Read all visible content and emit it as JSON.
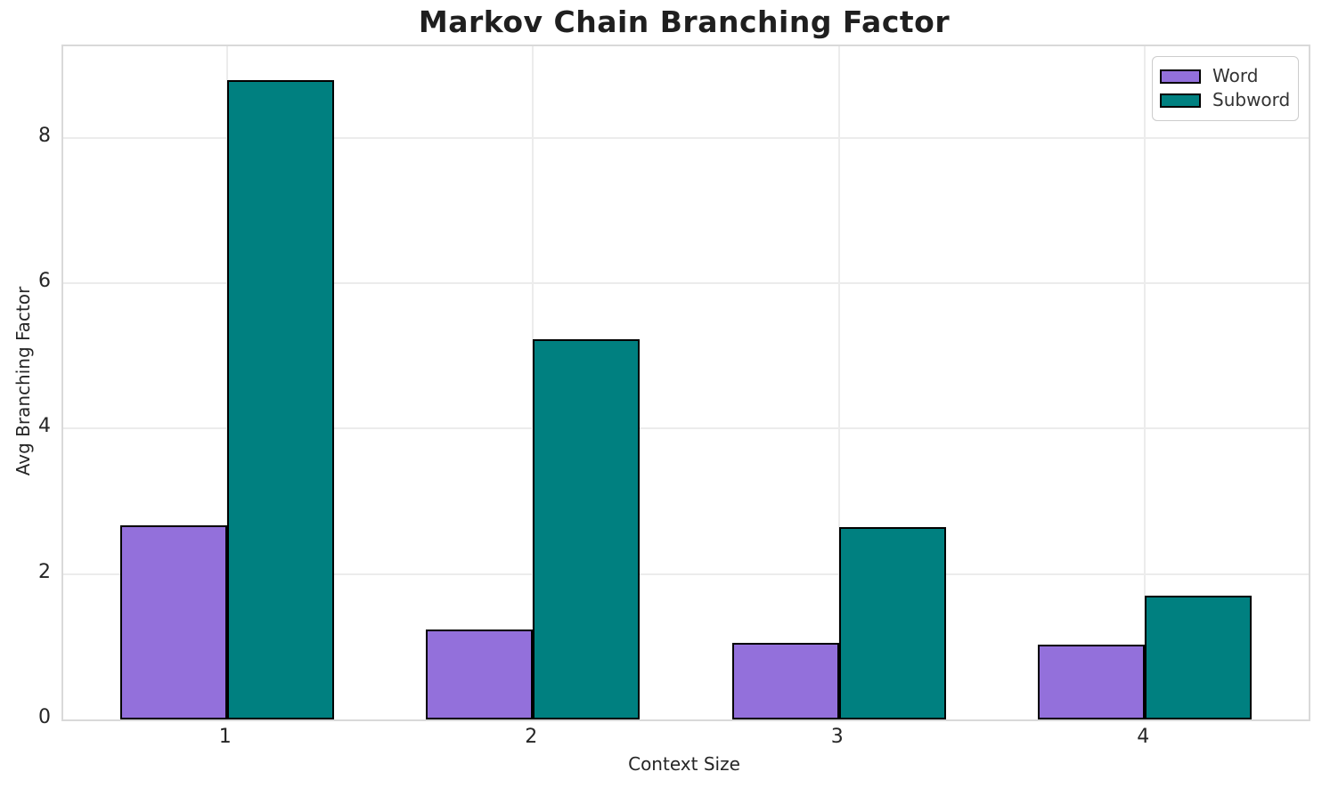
{
  "chart_data": {
    "type": "bar",
    "title": "Markov Chain Branching Factor",
    "xlabel": "Context Size",
    "ylabel": "Avg Branching Factor",
    "categories": [
      "1",
      "2",
      "3",
      "4"
    ],
    "series": [
      {
        "name": "Word",
        "color": "#9370DB",
        "edge_color": "#000000",
        "values": [
          2.67,
          1.24,
          1.05,
          1.03
        ]
      },
      {
        "name": "Subword",
        "color": "#008080",
        "edge_color": "#000000",
        "values": [
          8.8,
          5.23,
          2.65,
          1.7
        ]
      }
    ],
    "yticks": [
      0,
      2,
      4,
      6,
      8
    ],
    "ylim": [
      0,
      9.26
    ],
    "xlim": [
      0.465,
      4.535
    ],
    "bar_width_units": 0.35,
    "grid": true,
    "legend": {
      "position": "upper right",
      "entries": [
        "Word",
        "Subword"
      ]
    },
    "colors": {
      "background": "#ffffff",
      "grid": "#ececec",
      "spine": "#d9d9d9",
      "text": "#262626",
      "bar_edge": "#000000"
    }
  }
}
